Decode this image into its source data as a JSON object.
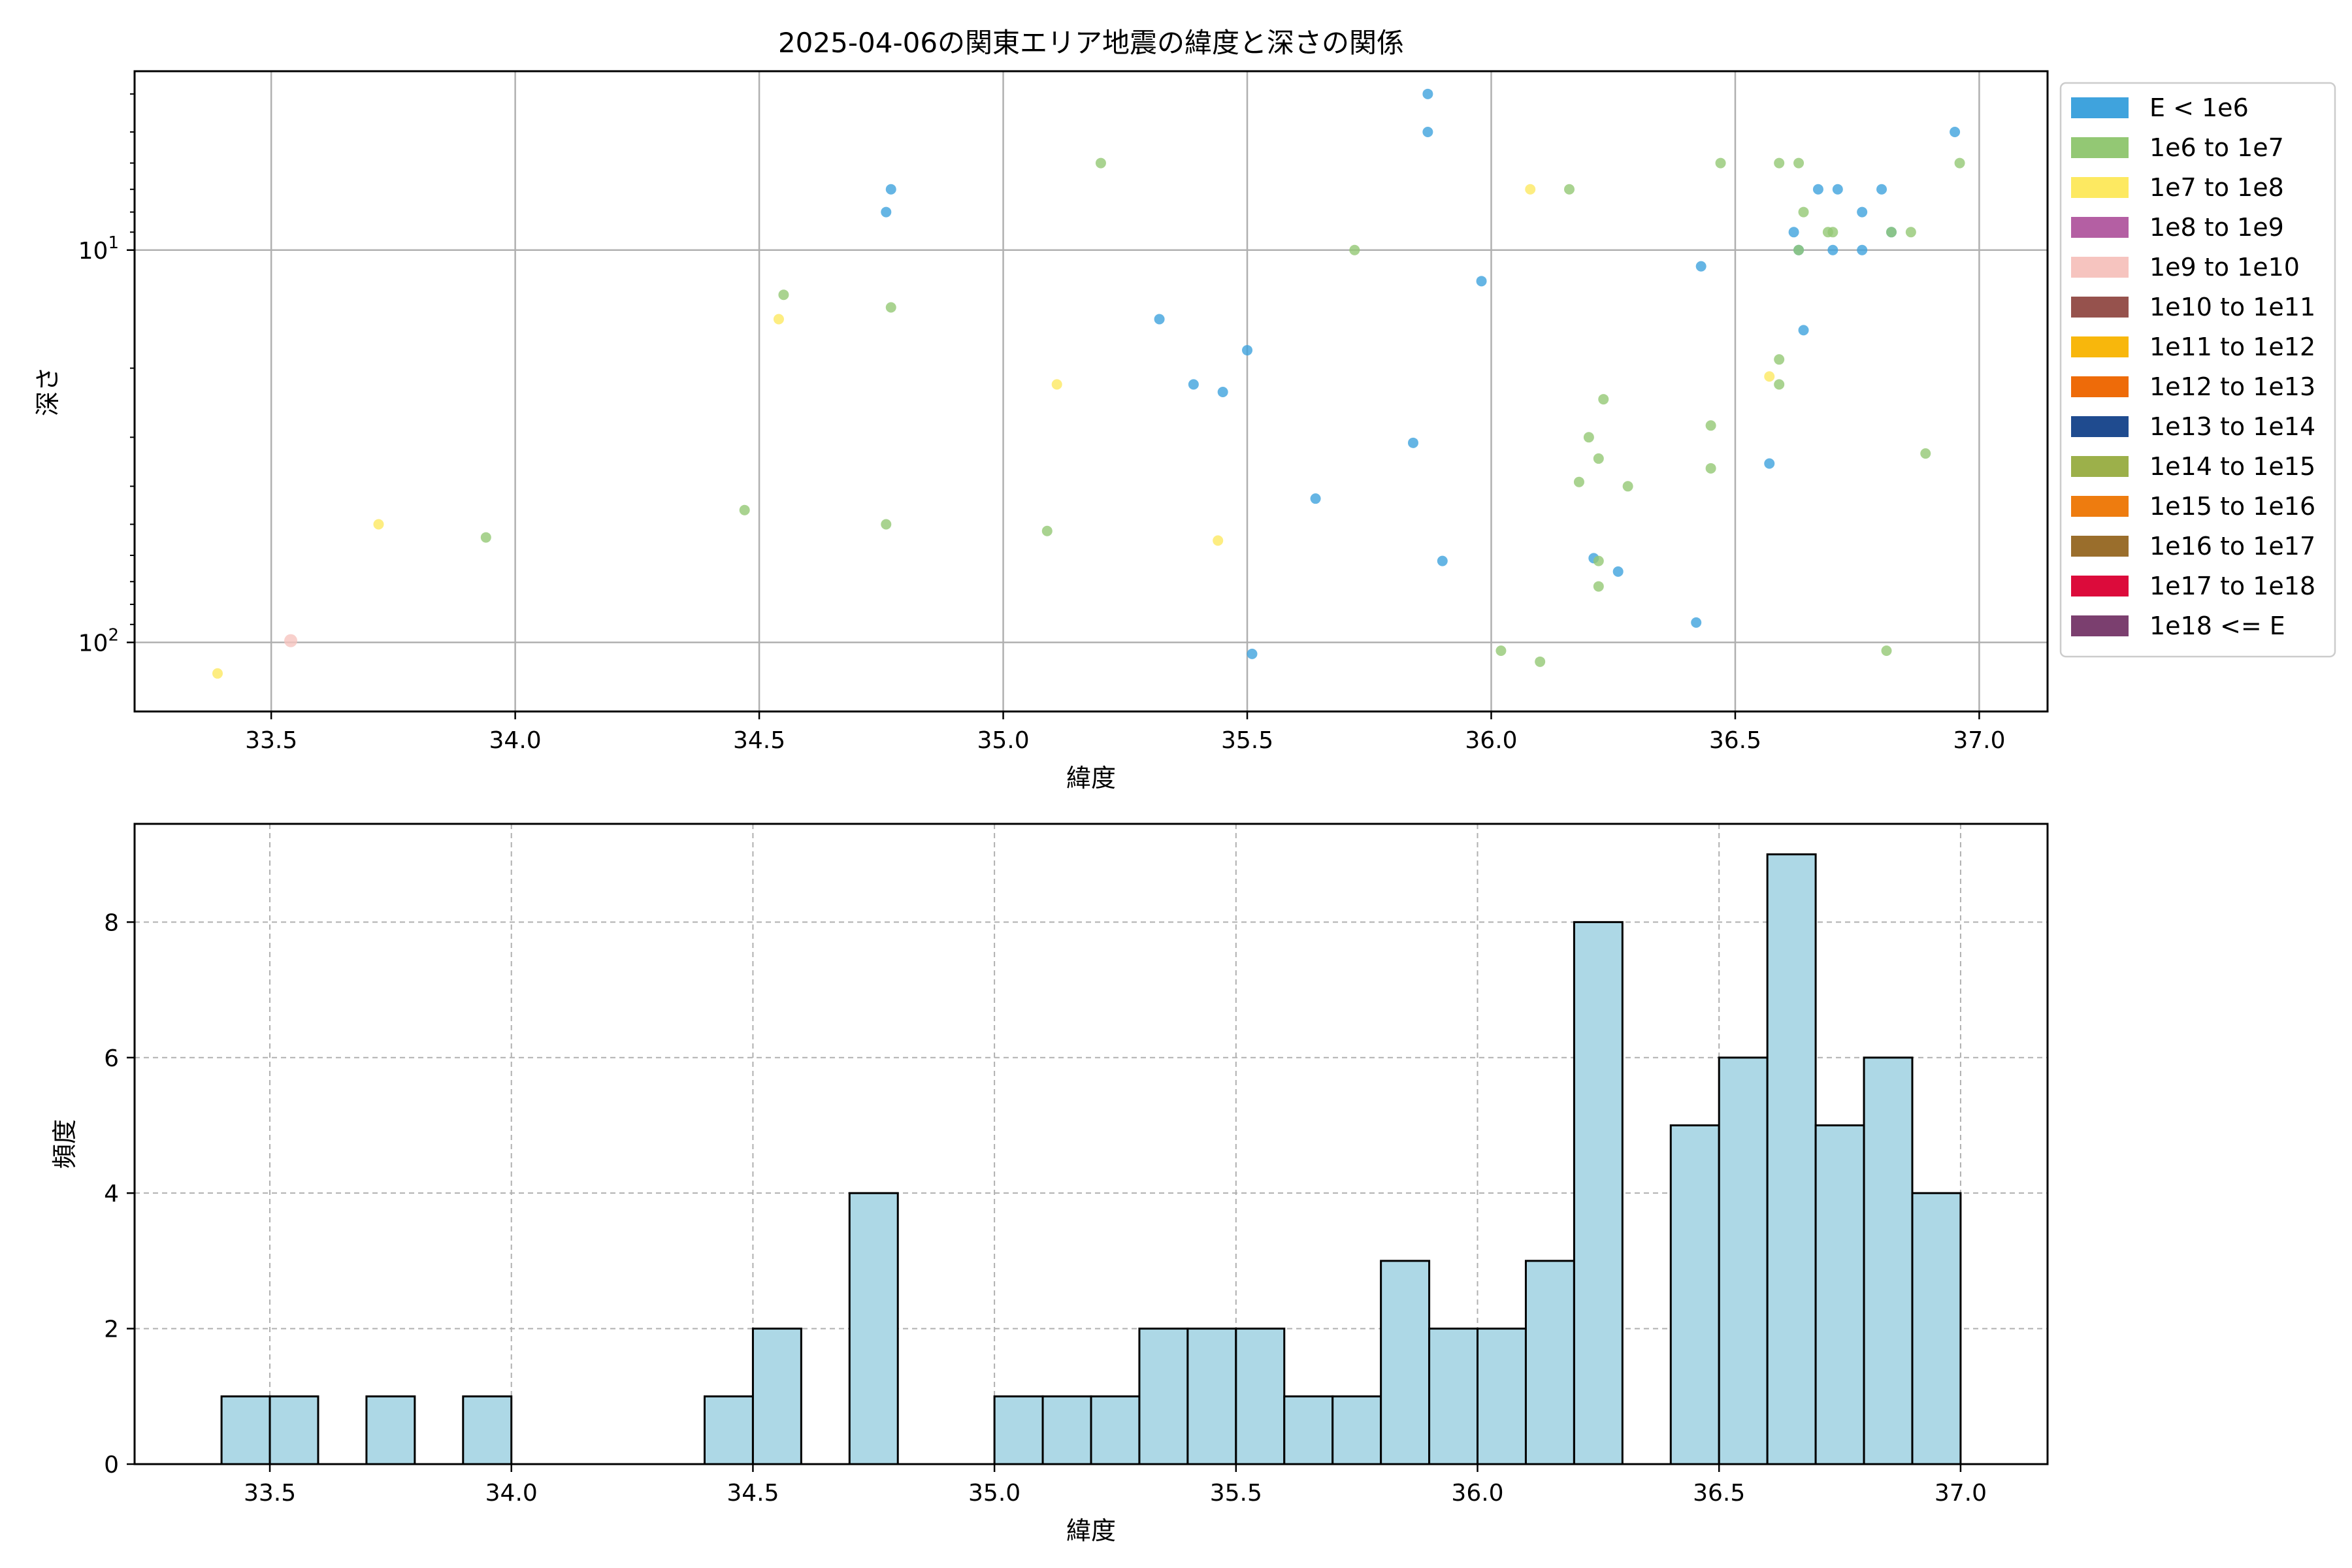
{
  "chart_data": [
    {
      "type": "scatter",
      "title": "2025-04-06の関東エリア地震の緯度と深さの関係",
      "xlabel": "緯度",
      "ylabel": "深さ",
      "xlim": [
        33.22,
        37.14
      ],
      "ylim": [
        150,
        3.5
      ],
      "yscale": "log",
      "y_inverted": true,
      "grid": true,
      "xticks": [
        33.5,
        34.0,
        34.5,
        35.0,
        35.5,
        36.0,
        36.5,
        37.0
      ],
      "xtick_labels": [
        "33.5",
        "34.0",
        "34.5",
        "35.0",
        "35.5",
        "36.0",
        "36.5",
        "37.0"
      ],
      "yticks": [
        10,
        100
      ],
      "ytick_labels": [
        {
          "base": "10",
          "exp": "1"
        },
        {
          "base": "10",
          "exp": "2"
        }
      ],
      "legend": {
        "placement": "outside-right",
        "entries": [
          {
            "label": "E < 1e6",
            "color": "#3fa3dd"
          },
          {
            "label": "1e6 to 1e7",
            "color": "#93c874"
          },
          {
            "label": "1e7 to 1e8",
            "color": "#fde961"
          },
          {
            "label": "1e8 to 1e9",
            "color": "#b45fa3"
          },
          {
            "label": "1e9 to 1e10",
            "color": "#f6c4bf"
          },
          {
            "label": "1e10 to 1e11",
            "color": "#96524d"
          },
          {
            "label": "1e11 to 1e12",
            "color": "#f8b70c"
          },
          {
            "label": "1e12 to 1e13",
            "color": "#ee6b09"
          },
          {
            "label": "1e13 to 1e14",
            "color": "#1f4b8f"
          },
          {
            "label": "1e14 to 1e15",
            "color": "#9cb04a"
          },
          {
            "label": "1e15 to 1e16",
            "color": "#ee7c0f"
          },
          {
            "label": "1e16 to 1e17",
            "color": "#9a6e2c"
          },
          {
            "label": "1e17 to 1e18",
            "color": "#dc0b3b"
          },
          {
            "label": "1e18 <= E",
            "color": "#7b3f6f"
          }
        ]
      },
      "series": [
        {
          "category": "E < 1e6",
          "color": "#3fa3dd",
          "points": [
            [
              35.87,
              4
            ],
            [
              35.87,
              5
            ],
            [
              36.95,
              5
            ],
            [
              34.77,
              7
            ],
            [
              34.76,
              8
            ],
            [
              36.67,
              7
            ],
            [
              36.71,
              7
            ],
            [
              36.8,
              7
            ],
            [
              36.76,
              8
            ],
            [
              36.62,
              9
            ],
            [
              36.63,
              10
            ],
            [
              36.7,
              10
            ],
            [
              36.76,
              10
            ],
            [
              36.82,
              9
            ],
            [
              36.43,
              11
            ],
            [
              35.98,
              12
            ],
            [
              35.32,
              15
            ],
            [
              36.64,
              16
            ],
            [
              35.5,
              18
            ],
            [
              35.39,
              22
            ],
            [
              35.45,
              23
            ],
            [
              35.84,
              31
            ],
            [
              36.57,
              35
            ],
            [
              35.64,
              43
            ],
            [
              36.21,
              61
            ],
            [
              35.9,
              62
            ],
            [
              36.26,
              66
            ],
            [
              36.42,
              89
            ],
            [
              35.51,
              107
            ]
          ]
        },
        {
          "category": "1e6 to 1e7",
          "color": "#93c874",
          "points": [
            [
              35.2,
              6
            ],
            [
              36.47,
              6
            ],
            [
              36.59,
              6
            ],
            [
              36.63,
              6
            ],
            [
              36.96,
              6
            ],
            [
              36.16,
              7
            ],
            [
              36.64,
              8
            ],
            [
              36.7,
              9
            ],
            [
              36.69,
              9
            ],
            [
              36.82,
              9
            ],
            [
              36.86,
              9
            ],
            [
              35.72,
              10
            ],
            [
              36.63,
              10
            ],
            [
              34.55,
              13
            ],
            [
              34.77,
              14
            ],
            [
              36.59,
              19
            ],
            [
              36.59,
              22
            ],
            [
              36.23,
              24
            ],
            [
              36.45,
              28
            ],
            [
              36.2,
              30
            ],
            [
              36.22,
              34
            ],
            [
              36.89,
              33
            ],
            [
              36.45,
              36
            ],
            [
              36.18,
              39
            ],
            [
              36.28,
              40
            ],
            [
              34.47,
              46
            ],
            [
              34.76,
              50
            ],
            [
              35.09,
              52
            ],
            [
              33.94,
              54
            ],
            [
              36.22,
              62
            ],
            [
              36.22,
              72
            ],
            [
              36.02,
              105
            ],
            [
              36.81,
              105
            ],
            [
              36.1,
              112
            ]
          ]
        },
        {
          "category": "1e7 to 1e8",
          "color": "#fde961",
          "points": [
            [
              36.08,
              7
            ],
            [
              34.54,
              15
            ],
            [
              36.57,
              21
            ],
            [
              35.11,
              22
            ],
            [
              33.72,
              50
            ],
            [
              35.44,
              55
            ],
            [
              33.39,
              120
            ]
          ]
        },
        {
          "category": "1e9 to 1e10",
          "color": "#f6c4bf",
          "points": [
            [
              33.54,
              99
            ]
          ]
        }
      ]
    },
    {
      "type": "bar",
      "subtype": "histogram",
      "title": "",
      "xlabel": "緯度",
      "ylabel": "頻度",
      "xlim": [
        33.22,
        37.18
      ],
      "ylim": [
        0,
        9.45
      ],
      "grid": true,
      "bar_color": "#add8e6",
      "edge_color": "#000000",
      "xticks": [
        33.5,
        34.0,
        34.5,
        35.0,
        35.5,
        36.0,
        36.5,
        37.0
      ],
      "xtick_labels": [
        "33.5",
        "34.0",
        "34.5",
        "35.0",
        "35.5",
        "36.0",
        "36.5",
        "37.0"
      ],
      "yticks": [
        0,
        2,
        4,
        6,
        8
      ],
      "ytick_labels": [
        "0",
        "2",
        "4",
        "6",
        "8"
      ],
      "bin_start": 33.4,
      "bin_width": 0.1,
      "counts": [
        1,
        1,
        0,
        1,
        0,
        1,
        0,
        0,
        0,
        0,
        1,
        2,
        0,
        4,
        0,
        0,
        1,
        1,
        1,
        2,
        2,
        2,
        1,
        1,
        3,
        2,
        2,
        3,
        8,
        0,
        5,
        6,
        9,
        5,
        6,
        4
      ]
    }
  ]
}
